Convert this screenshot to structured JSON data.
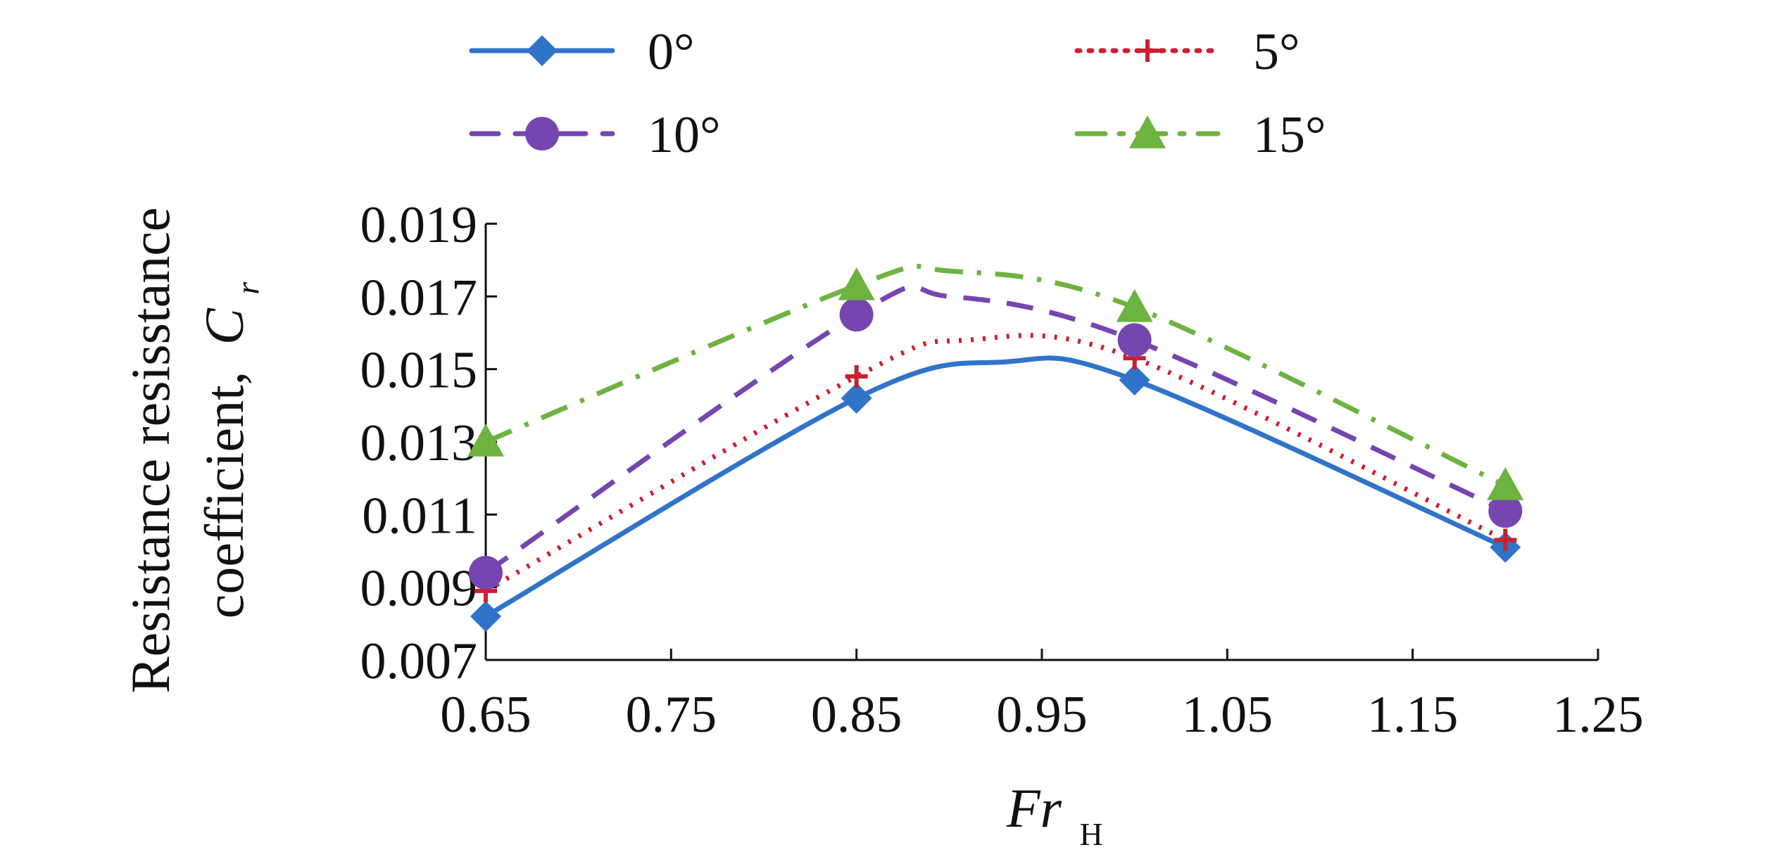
{
  "chart_data": {
    "type": "line",
    "title": "",
    "x": [
      0.65,
      0.85,
      1.0,
      1.2
    ],
    "xlim": [
      0.65,
      1.25
    ],
    "ylim": [
      0.007,
      0.019
    ],
    "xticks": [
      "0.65",
      "0.75",
      "0.85",
      "0.95",
      "1.05",
      "1.15",
      "1.25"
    ],
    "yticks": [
      "0.019",
      "0.017",
      "0.015",
      "0.013",
      "0.011",
      "0.009",
      "0.007"
    ],
    "xlabel": {
      "main": "Fr",
      "sub": "H"
    },
    "ylabel": {
      "line1": "Resistance resisstance",
      "line2": "coefficient,",
      "symbol": "C",
      "sub": "r"
    },
    "legend_position": "top",
    "series": [
      {
        "name": "0°",
        "color": "#2f74c8",
        "dash": "solid",
        "marker": "diamond",
        "values": [
          0.0082,
          0.0142,
          0.0147,
          0.0101
        ],
        "peak": [
          0.93,
          0.0152
        ]
      },
      {
        "name": "5°",
        "color": "#cc1f2f",
        "dash": "dotted",
        "marker": "plus",
        "values": [
          0.0089,
          0.0148,
          0.0153,
          0.0103
        ],
        "peak": [
          0.91,
          0.0158
        ]
      },
      {
        "name": "10°",
        "color": "#7545b0",
        "dash": "dashed",
        "marker": "circle",
        "values": [
          0.0094,
          0.0165,
          0.0158,
          0.0111
        ],
        "peak": [
          0.9,
          0.017
        ]
      },
      {
        "name": "15°",
        "color": "#6db33f",
        "dash": "dashdot",
        "marker": "triangle",
        "values": [
          0.013,
          0.0173,
          0.0167,
          0.0118
        ],
        "peak": [
          0.9,
          0.0177
        ]
      }
    ]
  }
}
